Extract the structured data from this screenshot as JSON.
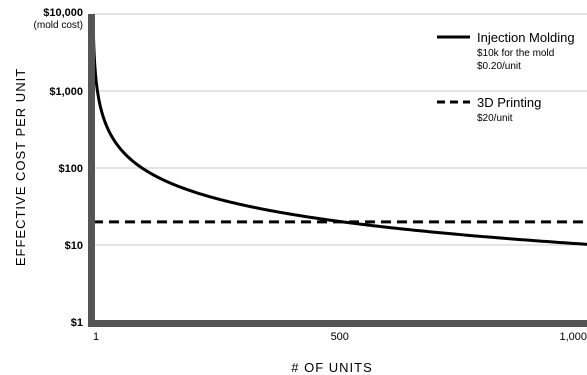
{
  "chart_data": {
    "type": "line",
    "xlabel": "# OF UNITS",
    "ylabel": "EFFECTIVE COST PER UNIT",
    "y_scale": "log",
    "xlim": [
      1,
      1000
    ],
    "ylim": [
      1,
      10000
    ],
    "x_ticks": [
      {
        "value": 1,
        "label": "1"
      },
      {
        "value": 500,
        "label": "500"
      },
      {
        "value": 1000,
        "label": "1,000"
      }
    ],
    "y_ticks": [
      {
        "value": 10000,
        "label": "$10,000",
        "sublabel": "(mold cost)"
      },
      {
        "value": 1000,
        "label": "$1,000"
      },
      {
        "value": 100,
        "label": "$100"
      },
      {
        "value": 10,
        "label": "$10"
      },
      {
        "value": 1,
        "label": "$1"
      }
    ],
    "grid": "horizontal",
    "legend_position": "top-right",
    "series": [
      {
        "name": "Injection Molding",
        "details": [
          "$10k for the mold",
          "$0.20/unit"
        ],
        "style": "solid",
        "color": "#000000",
        "formula": "10000 / x + 0.2",
        "x": [
          1,
          2,
          5,
          10,
          20,
          50,
          100,
          150,
          200,
          300,
          400,
          500,
          600,
          700,
          800,
          900,
          1000
        ],
        "y": [
          10000.2,
          5000.2,
          2000.2,
          1000.2,
          500.2,
          200.2,
          100.2,
          66.87,
          50.2,
          33.53,
          25.2,
          20.2,
          16.87,
          14.49,
          12.7,
          11.31,
          10.2
        ]
      },
      {
        "name": "3D Printing",
        "details": [
          "$20/unit"
        ],
        "style": "dashed",
        "color": "#000000",
        "x": [
          1,
          1000
        ],
        "y": [
          20,
          20
        ]
      }
    ]
  },
  "colors": {
    "axis": "#555555",
    "grid": "#c8c8c8",
    "line": "#000000"
  }
}
